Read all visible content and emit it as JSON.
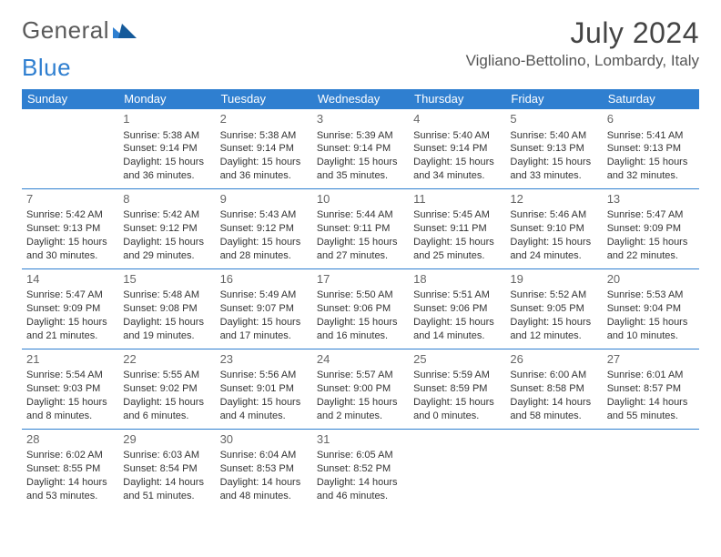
{
  "logo": {
    "word1": "General",
    "word2": "Blue",
    "accent_color": "#2f7fd0"
  },
  "title": "July 2024",
  "location": "Vigliano-Bettolino, Lombardy, Italy",
  "header_bg": "#2f7fd0",
  "header_fg": "#ffffff",
  "divider_color": "#2f7fd0",
  "day_headers": [
    "Sunday",
    "Monday",
    "Tuesday",
    "Wednesday",
    "Thursday",
    "Friday",
    "Saturday"
  ],
  "weeks": [
    [
      null,
      {
        "n": "1",
        "sr": "Sunrise: 5:38 AM",
        "ss": "Sunset: 9:14 PM",
        "d1": "Daylight: 15 hours",
        "d2": "and 36 minutes."
      },
      {
        "n": "2",
        "sr": "Sunrise: 5:38 AM",
        "ss": "Sunset: 9:14 PM",
        "d1": "Daylight: 15 hours",
        "d2": "and 36 minutes."
      },
      {
        "n": "3",
        "sr": "Sunrise: 5:39 AM",
        "ss": "Sunset: 9:14 PM",
        "d1": "Daylight: 15 hours",
        "d2": "and 35 minutes."
      },
      {
        "n": "4",
        "sr": "Sunrise: 5:40 AM",
        "ss": "Sunset: 9:14 PM",
        "d1": "Daylight: 15 hours",
        "d2": "and 34 minutes."
      },
      {
        "n": "5",
        "sr": "Sunrise: 5:40 AM",
        "ss": "Sunset: 9:13 PM",
        "d1": "Daylight: 15 hours",
        "d2": "and 33 minutes."
      },
      {
        "n": "6",
        "sr": "Sunrise: 5:41 AM",
        "ss": "Sunset: 9:13 PM",
        "d1": "Daylight: 15 hours",
        "d2": "and 32 minutes."
      }
    ],
    [
      {
        "n": "7",
        "sr": "Sunrise: 5:42 AM",
        "ss": "Sunset: 9:13 PM",
        "d1": "Daylight: 15 hours",
        "d2": "and 30 minutes."
      },
      {
        "n": "8",
        "sr": "Sunrise: 5:42 AM",
        "ss": "Sunset: 9:12 PM",
        "d1": "Daylight: 15 hours",
        "d2": "and 29 minutes."
      },
      {
        "n": "9",
        "sr": "Sunrise: 5:43 AM",
        "ss": "Sunset: 9:12 PM",
        "d1": "Daylight: 15 hours",
        "d2": "and 28 minutes."
      },
      {
        "n": "10",
        "sr": "Sunrise: 5:44 AM",
        "ss": "Sunset: 9:11 PM",
        "d1": "Daylight: 15 hours",
        "d2": "and 27 minutes."
      },
      {
        "n": "11",
        "sr": "Sunrise: 5:45 AM",
        "ss": "Sunset: 9:11 PM",
        "d1": "Daylight: 15 hours",
        "d2": "and 25 minutes."
      },
      {
        "n": "12",
        "sr": "Sunrise: 5:46 AM",
        "ss": "Sunset: 9:10 PM",
        "d1": "Daylight: 15 hours",
        "d2": "and 24 minutes."
      },
      {
        "n": "13",
        "sr": "Sunrise: 5:47 AM",
        "ss": "Sunset: 9:09 PM",
        "d1": "Daylight: 15 hours",
        "d2": "and 22 minutes."
      }
    ],
    [
      {
        "n": "14",
        "sr": "Sunrise: 5:47 AM",
        "ss": "Sunset: 9:09 PM",
        "d1": "Daylight: 15 hours",
        "d2": "and 21 minutes."
      },
      {
        "n": "15",
        "sr": "Sunrise: 5:48 AM",
        "ss": "Sunset: 9:08 PM",
        "d1": "Daylight: 15 hours",
        "d2": "and 19 minutes."
      },
      {
        "n": "16",
        "sr": "Sunrise: 5:49 AM",
        "ss": "Sunset: 9:07 PM",
        "d1": "Daylight: 15 hours",
        "d2": "and 17 minutes."
      },
      {
        "n": "17",
        "sr": "Sunrise: 5:50 AM",
        "ss": "Sunset: 9:06 PM",
        "d1": "Daylight: 15 hours",
        "d2": "and 16 minutes."
      },
      {
        "n": "18",
        "sr": "Sunrise: 5:51 AM",
        "ss": "Sunset: 9:06 PM",
        "d1": "Daylight: 15 hours",
        "d2": "and 14 minutes."
      },
      {
        "n": "19",
        "sr": "Sunrise: 5:52 AM",
        "ss": "Sunset: 9:05 PM",
        "d1": "Daylight: 15 hours",
        "d2": "and 12 minutes."
      },
      {
        "n": "20",
        "sr": "Sunrise: 5:53 AM",
        "ss": "Sunset: 9:04 PM",
        "d1": "Daylight: 15 hours",
        "d2": "and 10 minutes."
      }
    ],
    [
      {
        "n": "21",
        "sr": "Sunrise: 5:54 AM",
        "ss": "Sunset: 9:03 PM",
        "d1": "Daylight: 15 hours",
        "d2": "and 8 minutes."
      },
      {
        "n": "22",
        "sr": "Sunrise: 5:55 AM",
        "ss": "Sunset: 9:02 PM",
        "d1": "Daylight: 15 hours",
        "d2": "and 6 minutes."
      },
      {
        "n": "23",
        "sr": "Sunrise: 5:56 AM",
        "ss": "Sunset: 9:01 PM",
        "d1": "Daylight: 15 hours",
        "d2": "and 4 minutes."
      },
      {
        "n": "24",
        "sr": "Sunrise: 5:57 AM",
        "ss": "Sunset: 9:00 PM",
        "d1": "Daylight: 15 hours",
        "d2": "and 2 minutes."
      },
      {
        "n": "25",
        "sr": "Sunrise: 5:59 AM",
        "ss": "Sunset: 8:59 PM",
        "d1": "Daylight: 15 hours",
        "d2": "and 0 minutes."
      },
      {
        "n": "26",
        "sr": "Sunrise: 6:00 AM",
        "ss": "Sunset: 8:58 PM",
        "d1": "Daylight: 14 hours",
        "d2": "and 58 minutes."
      },
      {
        "n": "27",
        "sr": "Sunrise: 6:01 AM",
        "ss": "Sunset: 8:57 PM",
        "d1": "Daylight: 14 hours",
        "d2": "and 55 minutes."
      }
    ],
    [
      {
        "n": "28",
        "sr": "Sunrise: 6:02 AM",
        "ss": "Sunset: 8:55 PM",
        "d1": "Daylight: 14 hours",
        "d2": "and 53 minutes."
      },
      {
        "n": "29",
        "sr": "Sunrise: 6:03 AM",
        "ss": "Sunset: 8:54 PM",
        "d1": "Daylight: 14 hours",
        "d2": "and 51 minutes."
      },
      {
        "n": "30",
        "sr": "Sunrise: 6:04 AM",
        "ss": "Sunset: 8:53 PM",
        "d1": "Daylight: 14 hours",
        "d2": "and 48 minutes."
      },
      {
        "n": "31",
        "sr": "Sunrise: 6:05 AM",
        "ss": "Sunset: 8:52 PM",
        "d1": "Daylight: 14 hours",
        "d2": "and 46 minutes."
      },
      null,
      null,
      null
    ]
  ]
}
